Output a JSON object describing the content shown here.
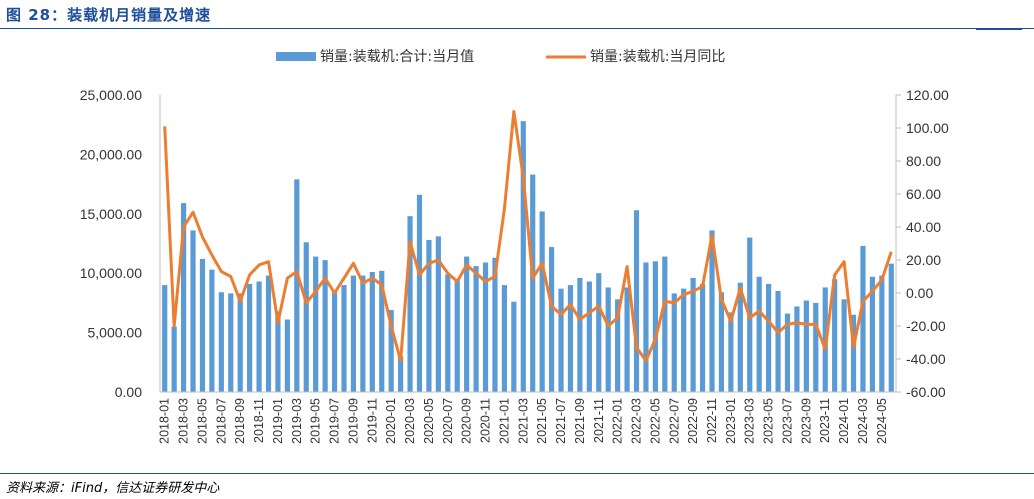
{
  "header": {
    "title": "图 28：装载机月销量及增速"
  },
  "footer": {
    "source": "资料来源：iFind，信达证券研发中心"
  },
  "chart_data": {
    "type": "bar+line",
    "legend": [
      "销量:装载机:合计:当月值",
      "销量:装载机:当月同比"
    ],
    "left_axis": {
      "ticks": [
        "25,000.00",
        "20,000.00",
        "15,000.00",
        "10,000.00",
        "5,000.00",
        "0.00"
      ],
      "min": 0,
      "max": 25000
    },
    "right_axis": {
      "ticks": [
        "120.00",
        "100.00",
        "80.00",
        "60.00",
        "40.00",
        "20.00",
        "0.00",
        "-20.00",
        "-40.00",
        "-60.00"
      ],
      "min": -60,
      "max": 120
    },
    "x_labels": [
      "2018-01",
      "2018-03",
      "2018-05",
      "2018-07",
      "2018-09",
      "2018-11",
      "2019-01",
      "2019-03",
      "2019-05",
      "2019-07",
      "2019-09",
      "2019-11",
      "2020-01",
      "2020-03",
      "2020-05",
      "2020-07",
      "2020-09",
      "2020-11",
      "2021-01",
      "2021-03",
      "2021-05",
      "2021-07",
      "2021-09",
      "2021-11",
      "2022-01",
      "2022-03",
      "2022-05",
      "2022-07",
      "2022-09",
      "2022-11",
      "2023-01",
      "2023-03",
      "2023-05",
      "2023-07",
      "2023-09",
      "2023-11",
      "2024-01",
      "2024-03",
      "2024-05"
    ],
    "months": [
      "2018-01",
      "2018-02",
      "2018-03",
      "2018-04",
      "2018-05",
      "2018-06",
      "2018-07",
      "2018-08",
      "2018-09",
      "2018-10",
      "2018-11",
      "2018-12",
      "2019-01",
      "2019-02",
      "2019-03",
      "2019-04",
      "2019-05",
      "2019-06",
      "2019-07",
      "2019-08",
      "2019-09",
      "2019-10",
      "2019-11",
      "2019-12",
      "2020-01",
      "2020-02",
      "2020-03",
      "2020-04",
      "2020-05",
      "2020-06",
      "2020-07",
      "2020-08",
      "2020-09",
      "2020-10",
      "2020-11",
      "2020-12",
      "2021-01",
      "2021-02",
      "2021-03",
      "2021-04",
      "2021-05",
      "2021-06",
      "2021-07",
      "2021-08",
      "2021-09",
      "2021-10",
      "2021-11",
      "2021-12",
      "2022-01",
      "2022-02",
      "2022-03",
      "2022-04",
      "2022-05",
      "2022-06",
      "2022-07",
      "2022-08",
      "2022-09",
      "2022-10",
      "2022-11",
      "2022-12",
      "2023-01",
      "2023-02",
      "2023-03",
      "2023-04",
      "2023-05",
      "2023-06",
      "2023-07",
      "2023-08",
      "2023-09",
      "2023-10",
      "2023-11",
      "2023-12",
      "2024-01",
      "2024-02",
      "2024-03",
      "2024-04",
      "2024-05",
      "2024-06"
    ],
    "sales": [
      9000,
      5500,
      15900,
      13600,
      11200,
      10300,
      8400,
      8300,
      8300,
      9100,
      9300,
      9800,
      6800,
      6100,
      17900,
      12600,
      11400,
      11100,
      8400,
      9000,
      9800,
      9800,
      10100,
      10200,
      6900,
      3000,
      14800,
      16600,
      12800,
      13100,
      9900,
      9400,
      11400,
      10600,
      10900,
      11300,
      9000,
      7600,
      22800,
      18300,
      15200,
      12200,
      8700,
      9000,
      9600,
      9300,
      10000,
      8800,
      7800,
      8800,
      15300,
      10900,
      11000,
      11400,
      8300,
      8700,
      9600,
      9100,
      13600,
      8400,
      6700,
      9200,
      13000,
      9700,
      9100,
      8500,
      6600,
      7200,
      7700,
      7500,
      8800,
      9500,
      7800,
      6500,
      12300,
      9700,
      9800,
      10800
    ],
    "yoy": [
      101,
      -20,
      40,
      49,
      34,
      23,
      13,
      10,
      -5,
      11,
      17,
      19,
      -18,
      9,
      13,
      -6,
      1,
      9,
      0,
      9,
      18,
      6,
      9,
      5,
      -20,
      -41,
      31,
      11,
      18,
      20,
      12,
      7,
      17,
      12,
      7,
      10,
      51,
      110,
      70,
      9,
      18,
      -8,
      -13,
      -7,
      -16,
      -12,
      -8,
      -20,
      -15,
      16,
      -33,
      -41,
      -28,
      -5,
      -6,
      -1,
      1,
      4,
      35,
      -4,
      -17,
      3,
      -15,
      -11,
      -17,
      -24,
      -19,
      -18,
      -19,
      -19,
      -34,
      11,
      19,
      -33,
      -5,
      1,
      8,
      25
    ],
    "colors": {
      "bar": "#5b9bd5",
      "line": "#ed7d31"
    }
  }
}
